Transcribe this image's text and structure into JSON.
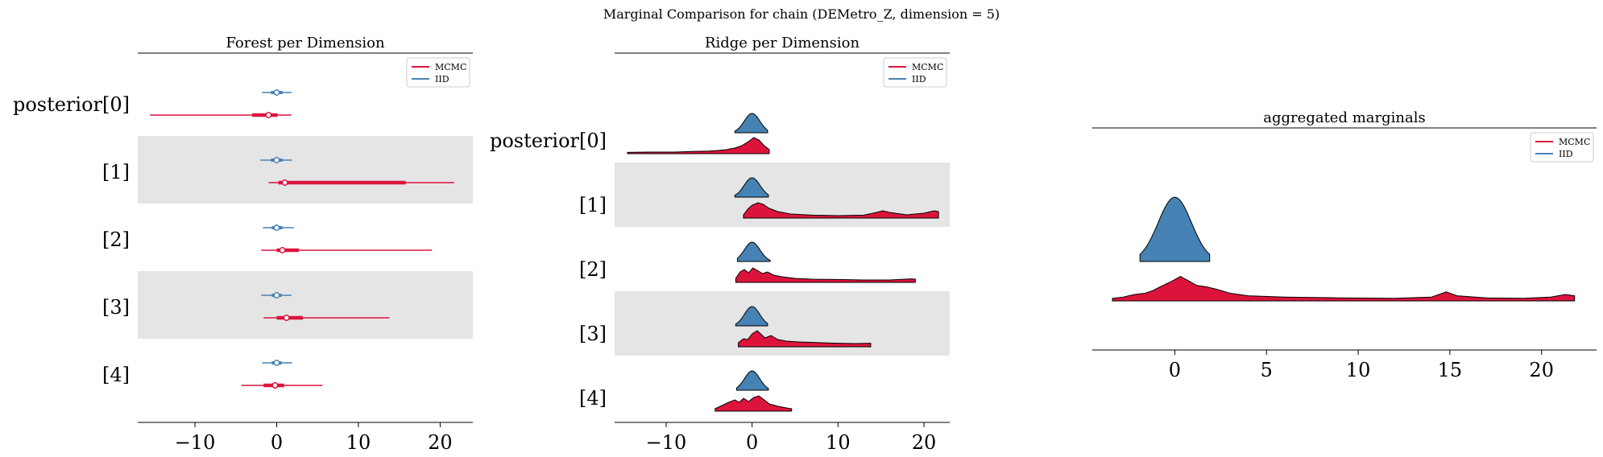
{
  "figure": {
    "suptitle": "Marginal Comparison for chain (DEMetro_Z, dimension = 5)"
  },
  "colors": {
    "mcmc": "#DC143C",
    "iid": "#4682B4",
    "band": "#e5e5e5"
  },
  "chart_data": [
    {
      "type": "forest",
      "title": "Forest per Dimension",
      "xlim": [
        -17,
        24
      ],
      "xticks": [
        -10,
        0,
        10,
        20
      ],
      "rows": [
        {
          "label": "posterior[0]",
          "shaded": false,
          "iid": {
            "hdi": [
              -1.8,
              1.8
            ],
            "iqr": [
              -0.7,
              0.7
            ],
            "median": 0.0
          },
          "mcmc": {
            "hdi": [
              -15.5,
              1.8
            ],
            "iqr": [
              -3.0,
              0.1
            ],
            "median": -1.0
          }
        },
        {
          "label": "[1]",
          "shaded": true,
          "iid": {
            "hdi": [
              -2.0,
              1.9
            ],
            "iqr": [
              -0.7,
              0.7
            ],
            "median": 0.0
          },
          "mcmc": {
            "hdi": [
              -1.0,
              21.7
            ],
            "iqr": [
              0.2,
              15.8
            ],
            "median": 1.0
          }
        },
        {
          "label": "[2]",
          "shaded": false,
          "iid": {
            "hdi": [
              -1.7,
              2.1
            ],
            "iqr": [
              -0.6,
              0.7
            ],
            "median": 0.0
          },
          "mcmc": {
            "hdi": [
              -1.9,
              19.0
            ],
            "iqr": [
              0.0,
              2.7
            ],
            "median": 0.7
          }
        },
        {
          "label": "[3]",
          "shaded": true,
          "iid": {
            "hdi": [
              -1.9,
              1.8
            ],
            "iqr": [
              -0.6,
              0.6
            ],
            "median": 0.0
          },
          "mcmc": {
            "hdi": [
              -1.6,
              13.8
            ],
            "iqr": [
              0.0,
              3.2
            ],
            "median": 1.2
          }
        },
        {
          "label": "[4]",
          "shaded": false,
          "iid": {
            "hdi": [
              -1.8,
              1.9
            ],
            "iqr": [
              -0.6,
              0.6
            ],
            "median": 0.0
          },
          "mcmc": {
            "hdi": [
              -4.3,
              5.6
            ],
            "iqr": [
              -1.6,
              0.9
            ],
            "median": -0.2
          }
        }
      ],
      "legend": {
        "placement": "top-right",
        "entries": [
          "MCMC",
          "IID"
        ]
      }
    },
    {
      "type": "ridgeline",
      "title": "Ridge per Dimension",
      "xlim": [
        -16,
        23
      ],
      "xticks": [
        -10,
        0,
        10,
        20
      ],
      "rows": [
        {
          "label": "posterior[0]",
          "shaded": false,
          "iid": {
            "range": [
              -2.0,
              1.8
            ],
            "peak": 0.15
          },
          "mcmc": {
            "range": [
              -14.5,
              2.0
            ],
            "peak": 0.15,
            "points": [
              [
                -14.5,
                0.08
              ],
              [
                -12,
                0.1
              ],
              [
                -9,
                0.1
              ],
              [
                -7,
                0.14
              ],
              [
                -5,
                0.16
              ],
              [
                -4,
                0.2
              ],
              [
                -3,
                0.25
              ],
              [
                -2,
                0.35
              ],
              [
                -1.2,
                0.5
              ],
              [
                -0.3,
                0.8
              ],
              [
                0.2,
                1.0
              ],
              [
                0.8,
                0.85
              ],
              [
                1.4,
                0.5
              ],
              [
                2.0,
                0.25
              ]
            ]
          }
        },
        {
          "label": "[1]",
          "shaded": true,
          "iid": {
            "range": [
              -2.0,
              1.9
            ],
            "peak": 0.15
          },
          "mcmc": {
            "range": [
              -1.0,
              21.7
            ],
            "peak": 0.15,
            "points": [
              [
                -1.0,
                0.2
              ],
              [
                -0.5,
                0.55
              ],
              [
                0,
                0.8
              ],
              [
                0.7,
                0.95
              ],
              [
                1.3,
                0.85
              ],
              [
                2,
                0.6
              ],
              [
                3,
                0.4
              ],
              [
                4.5,
                0.25
              ],
              [
                7,
                0.18
              ],
              [
                10,
                0.15
              ],
              [
                13,
                0.18
              ],
              [
                14.5,
                0.35
              ],
              [
                15.2,
                0.45
              ],
              [
                16,
                0.35
              ],
              [
                18,
                0.2
              ],
              [
                20,
                0.3
              ],
              [
                21.2,
                0.45
              ],
              [
                21.7,
                0.4
              ]
            ]
          }
        },
        {
          "label": "[2]",
          "shaded": false,
          "iid": {
            "range": [
              -1.7,
              2.1
            ],
            "peak": 0.15
          },
          "mcmc": {
            "range": [
              -1.9,
              19.0
            ],
            "peak": 0.15,
            "points": [
              [
                -1.9,
                0.25
              ],
              [
                -1.4,
                0.65
              ],
              [
                -0.9,
                0.8
              ],
              [
                -0.4,
                0.6
              ],
              [
                0.1,
                0.9
              ],
              [
                0.6,
                0.75
              ],
              [
                1.2,
                0.55
              ],
              [
                1.8,
                0.65
              ],
              [
                2.5,
                0.45
              ],
              [
                3.5,
                0.35
              ],
              [
                5,
                0.25
              ],
              [
                7,
                0.2
              ],
              [
                10,
                0.18
              ],
              [
                13,
                0.15
              ],
              [
                16,
                0.15
              ],
              [
                18.5,
                0.22
              ],
              [
                19.0,
                0.2
              ]
            ]
          }
        },
        {
          "label": "[3]",
          "shaded": true,
          "iid": {
            "range": [
              -1.9,
              1.8
            ],
            "peak": 0.15
          },
          "mcmc": {
            "range": [
              -1.6,
              13.8
            ],
            "peak": 0.15,
            "points": [
              [
                -1.6,
                0.25
              ],
              [
                -1.0,
                0.5
              ],
              [
                -0.5,
                0.45
              ],
              [
                0,
                0.8
              ],
              [
                0.6,
                1.0
              ],
              [
                1.0,
                0.8
              ],
              [
                1.5,
                0.55
              ],
              [
                2.2,
                0.7
              ],
              [
                3,
                0.45
              ],
              [
                4,
                0.35
              ],
              [
                5.5,
                0.3
              ],
              [
                8,
                0.25
              ],
              [
                10,
                0.22
              ],
              [
                12,
                0.2
              ],
              [
                13.8,
                0.22
              ]
            ]
          }
        },
        {
          "label": "[4]",
          "shaded": false,
          "iid": {
            "range": [
              -1.8,
              1.9
            ],
            "peak": 0.15
          },
          "mcmc": {
            "range": [
              -4.3,
              4.6
            ],
            "peak": 0.15,
            "points": [
              [
                -4.3,
                0.15
              ],
              [
                -3.5,
                0.35
              ],
              [
                -2.7,
                0.55
              ],
              [
                -2.0,
                0.7
              ],
              [
                -1.5,
                0.55
              ],
              [
                -1.0,
                0.8
              ],
              [
                -0.4,
                0.6
              ],
              [
                0.2,
                0.85
              ],
              [
                0.8,
                0.95
              ],
              [
                1.4,
                0.7
              ],
              [
                2.0,
                0.45
              ],
              [
                3.0,
                0.3
              ],
              [
                4.0,
                0.2
              ],
              [
                4.6,
                0.15
              ]
            ]
          }
        }
      ],
      "legend": {
        "placement": "top-right",
        "entries": [
          "MCMC",
          "IID"
        ]
      }
    },
    {
      "type": "ridgeline",
      "title": "aggregated marginals",
      "xlim": [
        -4.5,
        23
      ],
      "xticks": [
        0,
        5,
        10,
        15,
        20
      ],
      "rows": [
        {
          "label": "",
          "iid": {
            "range": [
              -1.9,
              1.9
            ],
            "peak": 0.0
          },
          "mcmc": {
            "range": [
              -3.4,
              21.8
            ],
            "peak": 0.0,
            "points": [
              [
                -3.4,
                0.1
              ],
              [
                -2.8,
                0.15
              ],
              [
                -2.2,
                0.25
              ],
              [
                -1.6,
                0.3
              ],
              [
                -1.2,
                0.4
              ],
              [
                -0.8,
                0.55
              ],
              [
                -0.2,
                0.75
              ],
              [
                0.3,
                0.95
              ],
              [
                0.7,
                0.8
              ],
              [
                1.2,
                0.6
              ],
              [
                1.7,
                0.55
              ],
              [
                2.3,
                0.45
              ],
              [
                3,
                0.3
              ],
              [
                4,
                0.2
              ],
              [
                6,
                0.15
              ],
              [
                9,
                0.12
              ],
              [
                12,
                0.1
              ],
              [
                14,
                0.15
              ],
              [
                14.8,
                0.35
              ],
              [
                15.4,
                0.2
              ],
              [
                17,
                0.12
              ],
              [
                19,
                0.1
              ],
              [
                20.5,
                0.15
              ],
              [
                21.3,
                0.25
              ],
              [
                21.8,
                0.2
              ]
            ]
          }
        }
      ],
      "legend": {
        "placement": "top-right",
        "entries": [
          "MCMC",
          "IID"
        ]
      }
    }
  ]
}
